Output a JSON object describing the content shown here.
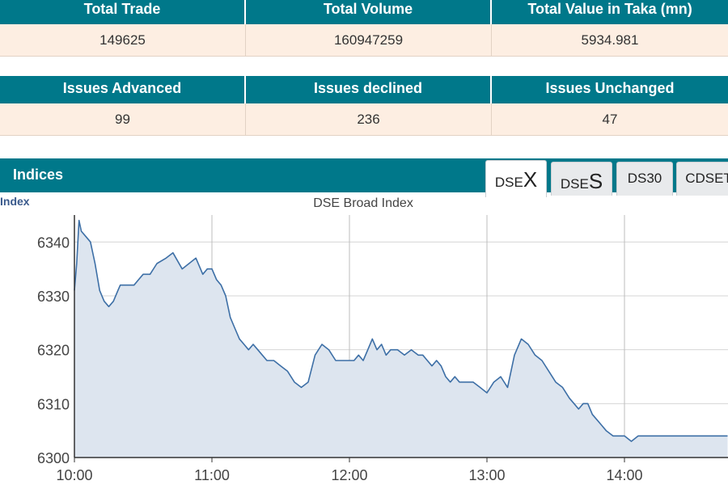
{
  "market_summary": {
    "headers": [
      "Total Trade",
      "Total Volume",
      "Total Value in Taka (mn)"
    ],
    "values": [
      "149625",
      "160947259",
      "5934.981"
    ]
  },
  "issues": {
    "headers": [
      "Issues Advanced",
      "Issues declined",
      "Issues Unchanged"
    ],
    "values": [
      "99",
      "236",
      "47"
    ]
  },
  "indices": {
    "title": "Indices",
    "tabs": [
      {
        "small": "DSE",
        "big": "X",
        "active": true
      },
      {
        "small": "DSE",
        "big": "S",
        "active": false
      },
      {
        "label": "DS30",
        "active": false
      },
      {
        "label": "CDSET",
        "active": false
      }
    ]
  },
  "colors": {
    "header_bg": "#00788a",
    "value_bg": "#fdeee2",
    "line": "#3d6fa6",
    "area": "#dde5ef"
  },
  "chart_data": {
    "type": "area",
    "title": "DSE Broad Index",
    "ylabel": "Index",
    "xlabel": "",
    "x_ticks": [
      "10:00",
      "11:00",
      "12:00",
      "13:00",
      "14:00"
    ],
    "y_ticks": [
      6300,
      6310,
      6320,
      6330,
      6340
    ],
    "ylim": [
      6300,
      6345
    ],
    "xlim": [
      "10:00",
      "14:45"
    ],
    "grid": true,
    "series": [
      {
        "x": [
          "10:00",
          "10:01",
          "10:02",
          "10:03",
          "10:05",
          "10:07",
          "10:09",
          "10:11",
          "10:13",
          "10:15",
          "10:17",
          "10:19",
          "10:20",
          "10:22",
          "10:24",
          "10:26",
          "10:28",
          "10:30",
          "10:33",
          "10:36",
          "10:40",
          "10:43",
          "10:47",
          "10:50",
          "10:53",
          "10:56",
          "10:58",
          "11:00",
          "11:02",
          "11:04",
          "11:06",
          "11:08",
          "11:10",
          "11:12",
          "11:14",
          "11:16",
          "11:18",
          "11:20",
          "11:22",
          "11:24",
          "11:27",
          "11:30",
          "11:33",
          "11:36",
          "11:39",
          "11:42",
          "11:45",
          "11:48",
          "11:51",
          "11:54",
          "11:57",
          "12:00",
          "12:02",
          "12:04",
          "12:06",
          "12:08",
          "12:10",
          "12:12",
          "12:14",
          "12:16",
          "12:18",
          "12:21",
          "12:24",
          "12:27",
          "12:30",
          "12:32",
          "12:34",
          "12:36",
          "12:38",
          "12:40",
          "12:42",
          "12:44",
          "12:46",
          "12:48",
          "12:51",
          "12:54",
          "12:57",
          "13:00",
          "13:03",
          "13:06",
          "13:09",
          "13:12",
          "13:15",
          "13:18",
          "13:21",
          "13:24",
          "13:27",
          "13:30",
          "13:33",
          "13:36",
          "13:38",
          "13:40",
          "13:42",
          "13:44",
          "13:46",
          "13:48",
          "13:50",
          "13:52",
          "13:55",
          "13:58",
          "14:00",
          "14:03",
          "14:06",
          "14:09",
          "14:12",
          "14:15",
          "14:18",
          "14:21",
          "14:24",
          "14:27",
          "14:30",
          "14:33",
          "14:35",
          "14:37",
          "14:40",
          "14:45"
        ],
        "y": [
          6331,
          6336,
          6344,
          6342,
          6341,
          6340,
          6336,
          6331,
          6329,
          6328,
          6329,
          6331,
          6332,
          6332,
          6332,
          6332,
          6333,
          6334,
          6334,
          6336,
          6337,
          6338,
          6335,
          6336,
          6337,
          6334,
          6335,
          6335,
          6333,
          6332,
          6330,
          6326,
          6324,
          6322,
          6321,
          6320,
          6321,
          6320,
          6319,
          6318,
          6318,
          6317,
          6316,
          6314,
          6313,
          6314,
          6319,
          6321,
          6320,
          6318,
          6318,
          6318,
          6318,
          6319,
          6318,
          6320,
          6322,
          6320,
          6321,
          6319,
          6320,
          6320,
          6319,
          6320,
          6319,
          6319,
          6318,
          6317,
          6318,
          6317,
          6315,
          6314,
          6315,
          6314,
          6314,
          6314,
          6313,
          6312,
          6314,
          6315,
          6313,
          6319,
          6322,
          6321,
          6319,
          6318,
          6316,
          6314,
          6313,
          6311,
          6310,
          6309,
          6310,
          6310,
          6308,
          6307,
          6306,
          6305,
          6304,
          6304,
          6304,
          6303,
          6304,
          6304,
          6304,
          6304,
          6304,
          6304,
          6304,
          6304,
          6304,
          6304,
          6304,
          6304,
          6304,
          6304
        ]
      }
    ]
  }
}
